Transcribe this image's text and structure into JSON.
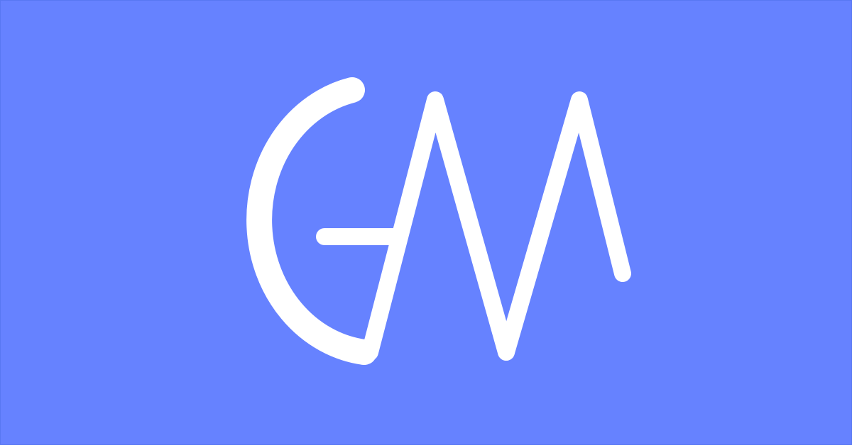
{
  "colors": {
    "background": "#6682ff",
    "logo": "#ffffff"
  },
  "logo": {
    "icon": "gm-monogram-icon",
    "text": "GM"
  }
}
